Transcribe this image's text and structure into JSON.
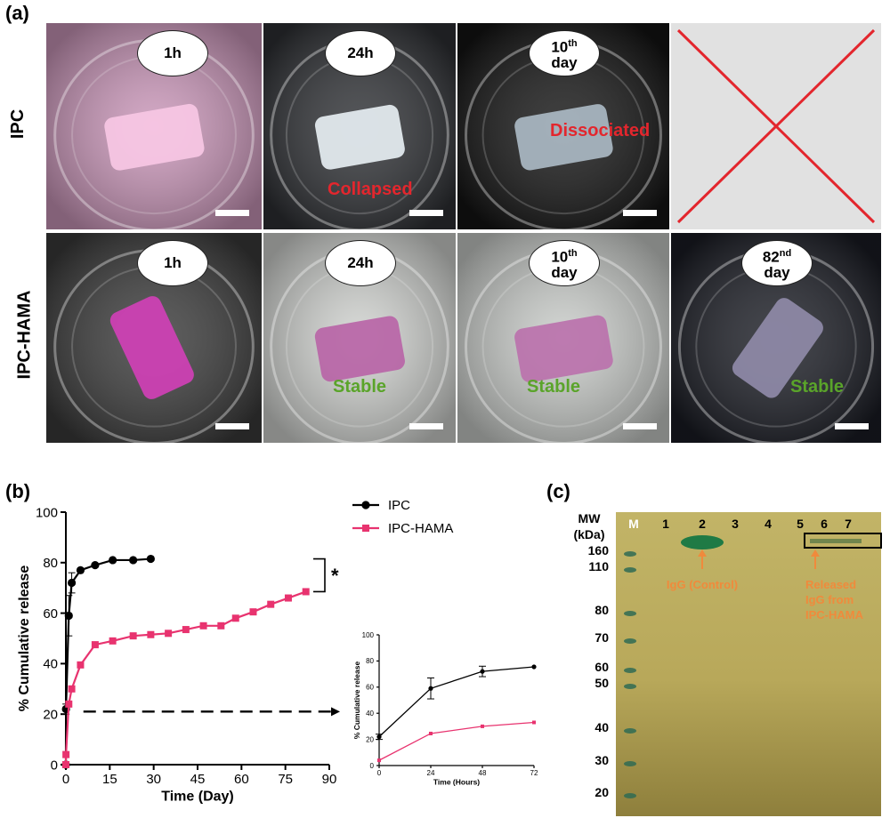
{
  "panel_a": {
    "letter": "(a)",
    "row_labels": [
      "IPC",
      "IPC-HAMA"
    ],
    "rows": [
      [
        {
          "time_main": "1h",
          "time_sup": "",
          "time_line2": "",
          "status": "",
          "status_color": "",
          "dish": "#c995b8",
          "scaffold": "#f7c7e4"
        },
        {
          "time_main": "24h",
          "time_sup": "",
          "time_line2": "",
          "status": "Collapsed",
          "status_color": "red",
          "dish": "#2e3034",
          "scaffold": "#e6eef2"
        },
        {
          "time_main": "10",
          "time_sup": "th",
          "time_line2": "day",
          "status": "Dissociated",
          "status_color": "red",
          "dish": "#141414",
          "scaffold": "#aab9c3"
        },
        {
          "time_main": "",
          "time_sup": "",
          "time_line2": "",
          "status": "",
          "status_color": "",
          "dish": "#e1e1e1",
          "scaffold": ""
        }
      ],
      [
        {
          "time_main": "1h",
          "time_sup": "",
          "time_line2": "",
          "status": "",
          "status_color": "",
          "dish": "#3a3a3a",
          "scaffold": "#d040b6"
        },
        {
          "time_main": "24h",
          "time_sup": "",
          "time_line2": "",
          "status": "Stable",
          "status_color": "green",
          "dish": "#cfd1ce",
          "scaffold": "#b865a7"
        },
        {
          "time_main": "10",
          "time_sup": "th",
          "time_line2": "day",
          "status": "Stable",
          "status_color": "green",
          "dish": "#c8cbc8",
          "scaffold": "#bb72ad"
        },
        {
          "time_main": "82",
          "time_sup": "nd",
          "time_line2": "day",
          "status": "Stable",
          "status_color": "green",
          "dish": "#1a1c24",
          "scaffold": "#8f8aa8"
        }
      ]
    ]
  },
  "chart_data": [
    {
      "type": "line",
      "panel": "(b)",
      "title": "",
      "xlabel": "Time (Day)",
      "ylabel": "% Cumulative release",
      "xlim": [
        0,
        90
      ],
      "ylim": [
        0,
        100
      ],
      "xticks": [
        0,
        15,
        30,
        45,
        60,
        75,
        90
      ],
      "yticks": [
        0,
        20,
        40,
        60,
        80,
        100
      ],
      "legend": "top-right",
      "significance": "*",
      "series": [
        {
          "name": "IPC",
          "color": "#000000",
          "marker": "circle",
          "x": [
            0,
            0.0417,
            1,
            2,
            5,
            10,
            16,
            23,
            29
          ],
          "y": [
            0,
            22,
            59,
            72,
            77,
            79,
            81,
            81,
            81.5
          ],
          "err": [
            0,
            2,
            8,
            4,
            1,
            1,
            1,
            1,
            1
          ]
        },
        {
          "name": "IPC-HAMA",
          "color": "#e8336f",
          "marker": "square",
          "x": [
            0,
            0.0417,
            1,
            2,
            5,
            10,
            16,
            23,
            29,
            35,
            41,
            47,
            53,
            58,
            64,
            70,
            76,
            82
          ],
          "y": [
            0,
            4,
            24,
            30,
            39.5,
            47.5,
            49,
            51,
            51.5,
            52,
            53.5,
            55,
            55,
            58,
            60.5,
            63.5,
            66,
            68.5
          ],
          "err": [
            0,
            1,
            1,
            1,
            1,
            1,
            1,
            1,
            1,
            1,
            1,
            1,
            1,
            1,
            1,
            1,
            1,
            1
          ]
        }
      ]
    },
    {
      "type": "line",
      "panel": "(b) inset",
      "title": "",
      "xlabel": "Time (Hours)",
      "ylabel": "% Cumulative release",
      "xlim": [
        0,
        72
      ],
      "ylim": [
        0,
        100
      ],
      "xticks": [
        0,
        24,
        48,
        72
      ],
      "yticks": [
        0,
        20,
        40,
        60,
        80,
        100
      ],
      "series": [
        {
          "name": "IPC",
          "color": "#000000",
          "x": [
            0,
            24,
            48,
            72
          ],
          "y": [
            22,
            59,
            72,
            75.5
          ],
          "err": [
            2,
            8,
            4,
            1
          ]
        },
        {
          "name": "IPC-HAMA",
          "color": "#e8336f",
          "x": [
            0,
            24,
            48,
            72
          ],
          "y": [
            4,
            24.5,
            30,
            33
          ],
          "err": [
            1,
            1,
            1,
            1
          ]
        }
      ]
    }
  ],
  "panel_c": {
    "letter": "(c)",
    "mw_header": [
      "MW",
      "(kDa)"
    ],
    "mw_labels": [
      "160",
      "110",
      "80",
      "70",
      "60",
      "50",
      "40",
      "30",
      "20"
    ],
    "lane_labels": [
      "M",
      "1",
      "2",
      "3",
      "4",
      "5",
      "6",
      "7"
    ],
    "annotation_control": "IgG (Control)",
    "annotation_released": [
      "Released",
      "IgG from",
      "IPC-HAMA"
    ],
    "arrow_color": "#f08a3c",
    "gel_color": "#b8a85a"
  }
}
